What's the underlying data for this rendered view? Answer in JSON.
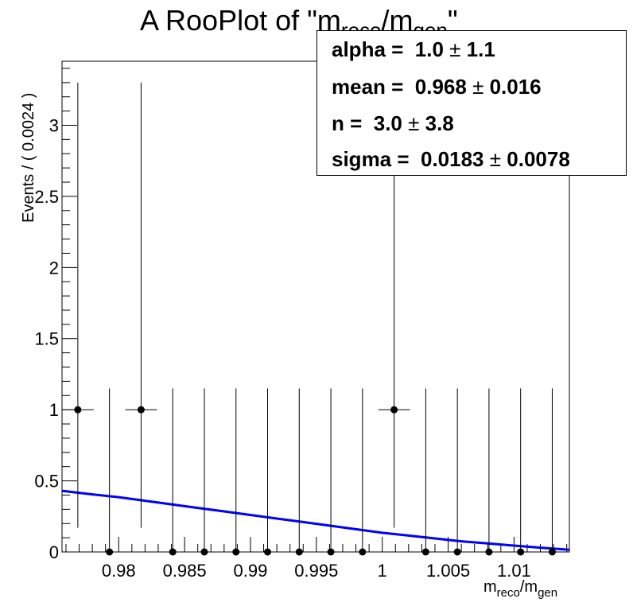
{
  "chart_data": {
    "type": "scatter",
    "title": "A RooPlot of \"m_reco/m_gen\"",
    "title_parts": {
      "prefix": "A RooPlot of \"m",
      "sub1": "reco",
      "slash": "/m",
      "sub2": "gen",
      "suffix": "\""
    },
    "xlabel_parts": {
      "m1": "m",
      "sub1": "reco",
      "slash": "/m",
      "sub2": "gen"
    },
    "ylabel": "Events / ( 0.0024 )",
    "xlim": [
      0.9757,
      1.0142
    ],
    "ylim": [
      0,
      3.45
    ],
    "xticks": [
      0.98,
      0.985,
      0.99,
      0.995,
      1,
      1.005,
      1.01
    ],
    "xtick_labels": [
      "0.98",
      "0.985",
      "0.99",
      "0.995",
      "1",
      "1.005",
      "1.01"
    ],
    "yticks": [
      0,
      0.5,
      1,
      1.5,
      2,
      2.5,
      3
    ],
    "ytick_labels": [
      "0",
      "0.5",
      "1",
      "1.5",
      "2",
      "2.5",
      "3"
    ],
    "bin_width": 0.0024,
    "series": [
      {
        "kind": "data-points",
        "color": "#000000",
        "x": [
          0.9769,
          0.9793,
          0.9817,
          0.9841,
          0.9865,
          0.9889,
          0.9913,
          0.9937,
          0.9961,
          0.9985,
          1.0009,
          1.0033,
          1.0057,
          1.0081,
          1.0105,
          1.0129
        ],
        "y": [
          1,
          0,
          1,
          0,
          0,
          0,
          0,
          0,
          0,
          0,
          1,
          0,
          0,
          0,
          0,
          0
        ],
        "yerr_low": [
          0.83,
          0,
          0.83,
          0,
          0,
          0,
          0,
          0,
          0,
          0,
          0.83,
          0,
          0,
          0,
          0,
          0
        ],
        "yerr_high": [
          2.3,
          1.15,
          2.3,
          1.15,
          1.15,
          1.15,
          1.15,
          1.15,
          1.15,
          1.15,
          2.3,
          1.15,
          1.15,
          1.15,
          1.15,
          1.15
        ]
      },
      {
        "kind": "fit-curve",
        "color": "#0000ff",
        "x": [
          0.9757,
          0.978,
          0.98,
          0.982,
          0.984,
          0.986,
          0.988,
          0.99,
          0.992,
          0.994,
          0.996,
          0.998,
          1.0,
          1.002,
          1.004,
          1.006,
          1.008,
          1.01,
          1.012,
          1.0142
        ],
        "y": [
          0.43,
          0.405,
          0.385,
          0.36,
          0.335,
          0.31,
          0.285,
          0.26,
          0.235,
          0.21,
          0.185,
          0.16,
          0.135,
          0.115,
          0.095,
          0.075,
          0.06,
          0.045,
          0.03,
          0.015
        ]
      }
    ]
  },
  "stats": [
    {
      "label": "alpha =  1.0 ",
      "pm": "±",
      "err": " 1.1"
    },
    {
      "label": "mean =  0.968 ",
      "pm": "±",
      "err": " 0.016"
    },
    {
      "label": "n =  3.0 ",
      "pm": "±",
      "err": " 3.8"
    },
    {
      "label": "sigma =  0.0183 ",
      "pm": "±",
      "err": " 0.0078"
    }
  ]
}
